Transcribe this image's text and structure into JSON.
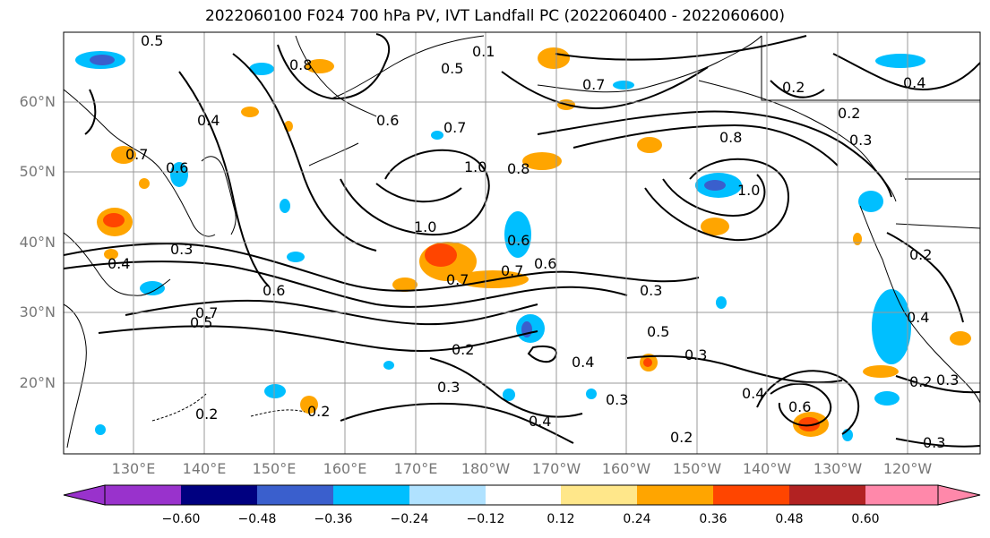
{
  "title": "2022060100 F024 700 hPa PV, IVT Landfall PC (2022060400 - 2022060600)",
  "map": {
    "lat_labels": [
      "60°N",
      "50°N",
      "40°N",
      "30°N",
      "20°N"
    ],
    "lon_labels": [
      "130°E",
      "140°E",
      "150°E",
      "160°E",
      "170°E",
      "180°W",
      "170°W",
      "160°W",
      "150°W",
      "140°W",
      "130°W",
      "120°W"
    ],
    "contour_labels": [
      "0.5",
      "0.8",
      "0.1",
      "0.5",
      "0.6",
      "0.7",
      "0.2",
      "0.4",
      "0.2",
      "0.3",
      "0.7",
      "0.4",
      "0.6",
      "0.7",
      "1.0",
      "0.8",
      "0.8",
      "1.0",
      "1.0",
      "0.3",
      "0.4",
      "0.6",
      "0.7",
      "0.6",
      "0.7",
      "0.6",
      "0.5",
      "0.7",
      "0.3",
      "0.5",
      "0.2",
      "0.3",
      "0.3",
      "0.4",
      "0.3",
      "0.2",
      "0.4",
      "0.6",
      "0.2",
      "0.2",
      "0.2",
      "0.3",
      "0.4",
      "0.4",
      "0.2",
      "0.3"
    ]
  },
  "colorbar": {
    "tick_labels": [
      "−0.60",
      "−0.48",
      "−0.36",
      "−0.24",
      "−0.12",
      "0.12",
      "0.24",
      "0.36",
      "0.48",
      "0.60"
    ],
    "colors": [
      "#9932cc",
      "#000080",
      "#3a5fcd",
      "#00bfff",
      "#b0e2ff",
      "#ffffff",
      "#ffe78a",
      "#ffa500",
      "#ff4500",
      "#b22222",
      "#ff88aa"
    ]
  }
}
